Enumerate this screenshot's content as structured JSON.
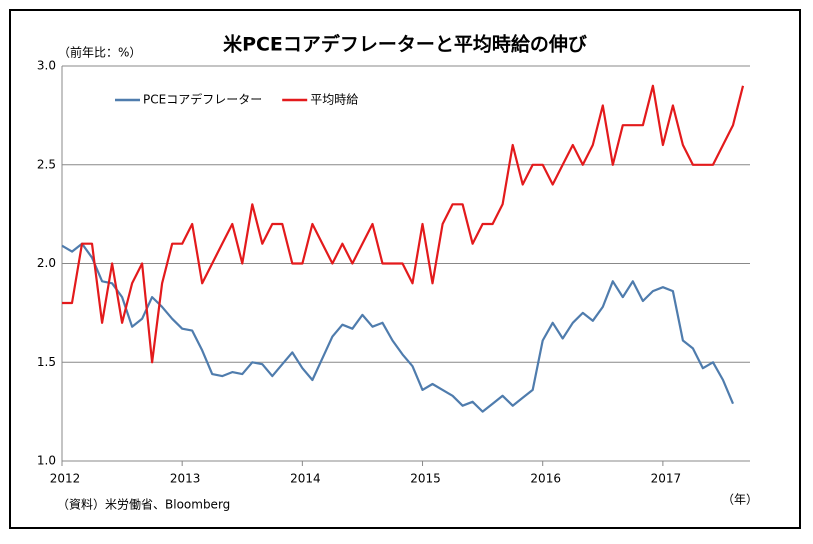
{
  "chart_data": {
    "type": "line",
    "title": "米PCEコアデフレーターと平均時給の伸び",
    "y_label": "（前年比：%）",
    "x_unit": "（年）",
    "source": "（資料）米労働省、Bloomberg",
    "categories": [
      "2012",
      null,
      null,
      null,
      null,
      null,
      null,
      null,
      null,
      null,
      null,
      null,
      "2013",
      null,
      null,
      null,
      null,
      null,
      null,
      null,
      null,
      null,
      null,
      null,
      "2014",
      null,
      null,
      null,
      null,
      null,
      null,
      null,
      null,
      null,
      null,
      null,
      "2015",
      null,
      null,
      null,
      null,
      null,
      null,
      null,
      null,
      null,
      null,
      null,
      "2016",
      null,
      null,
      null,
      null,
      null,
      null,
      null,
      null,
      null,
      null,
      null,
      "2017",
      null,
      null,
      null,
      null,
      null,
      null,
      null,
      null
    ],
    "series": [
      {
        "name": "PCEコアデフレーター",
        "color": "#4f7cad",
        "values": [
          2.09,
          2.06,
          2.1,
          2.03,
          1.91,
          1.9,
          1.83,
          1.68,
          1.72,
          1.83,
          1.78,
          1.72,
          1.67,
          1.66,
          1.56,
          1.44,
          1.43,
          1.45,
          1.44,
          1.5,
          1.49,
          1.43,
          1.49,
          1.55,
          1.47,
          1.41,
          1.52,
          1.63,
          1.69,
          1.67,
          1.74,
          1.68,
          1.7,
          1.61,
          1.54,
          1.48,
          1.36,
          1.39,
          1.36,
          1.33,
          1.28,
          1.3,
          1.25,
          1.29,
          1.33,
          1.28,
          1.32,
          1.36,
          1.61,
          1.7,
          1.62,
          1.7,
          1.75,
          1.71,
          1.78,
          1.91,
          1.83,
          1.91,
          1.81,
          1.86,
          1.88,
          1.86,
          1.61,
          1.57,
          1.47,
          1.5,
          1.41,
          1.29,
          null
        ]
      },
      {
        "name": "平均時給",
        "color": "#e31a1c",
        "values": [
          1.8,
          1.8,
          2.1,
          2.1,
          1.7,
          2.0,
          1.7,
          1.9,
          2.0,
          1.5,
          1.9,
          2.1,
          2.1,
          2.2,
          1.9,
          2.0,
          2.1,
          2.2,
          2.0,
          2.3,
          2.1,
          2.2,
          2.2,
          2.0,
          2.0,
          2.2,
          2.1,
          2.0,
          2.1,
          2.0,
          2.1,
          2.2,
          2.0,
          2.0,
          2.0,
          1.9,
          2.2,
          1.9,
          2.2,
          2.3,
          2.3,
          2.1,
          2.2,
          2.2,
          2.3,
          2.6,
          2.4,
          2.5,
          2.5,
          2.4,
          2.5,
          2.6,
          2.5,
          2.6,
          2.8,
          2.5,
          2.7,
          2.7,
          2.7,
          2.9,
          2.6,
          2.8,
          2.6,
          2.5,
          2.5,
          2.5,
          2.6,
          2.7,
          2.9
        ]
      }
    ],
    "ylim": [
      1.0,
      3.0
    ],
    "yticks": [
      {
        "value": 1.0,
        "label": "1.0"
      },
      1.5,
      {
        "value": 2.0,
        "label": "2.0"
      },
      2.5,
      {
        "value": 3.0,
        "label": "3.0"
      }
    ],
    "grid": true,
    "legend": "top-left"
  }
}
